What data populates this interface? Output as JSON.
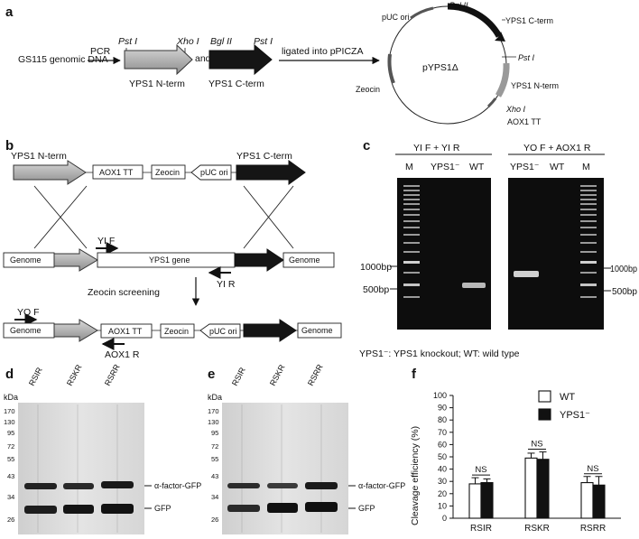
{
  "panel_a": {
    "label": "a",
    "source": "GS115 genomic DNA",
    "pcr": "PCR",
    "pst1": "Pst I",
    "xho1": "Xho I",
    "bgl2": "Bgl II",
    "and": "and",
    "n_term": "YPS1 N-term",
    "c_term": "YPS1 C-term",
    "ligation": "ligated into pPICZA",
    "plasmid": {
      "name": "pYPS1Δ",
      "labels": [
        "pUC ori",
        "Bgl II",
        "YPS1 C-term",
        "Pst I",
        "YPS1 N-term",
        "Xho I",
        "AOX1 TT",
        "Zeocin"
      ]
    }
  },
  "panel_b": {
    "label": "b",
    "n_term": "YPS1 N-term",
    "c_term": "YPS1 C-term",
    "aox1tt": "AOX1 TT",
    "zeocin": "Zeocin",
    "puc": "pUC ori",
    "genome": "Genome",
    "gene": "YPS1 gene",
    "yif": "YI F",
    "yir": "YI R",
    "screening": "Zeocin screening",
    "yof": "YO F",
    "aox1r": "AOX1 R"
  },
  "panel_c": {
    "label": "c",
    "gel1_title": "YI F + YI R",
    "gel2_title": "YO F + AOX1 R",
    "lanes1": [
      "M",
      "YPS1⁻",
      "WT"
    ],
    "lanes2": [
      "YPS1⁻",
      "WT",
      "M"
    ],
    "marker_1000": "1000bp",
    "marker_500": "500bp",
    "legend": "YPS1⁻: YPS1 knockout; WT: wild type"
  },
  "panel_d": {
    "label": "d",
    "kda": "kDa",
    "lanes": [
      "RSIR",
      "RSKR",
      "RSRR"
    ],
    "ladder": [
      "170",
      "130",
      "95",
      "72",
      "55",
      "43",
      "34",
      "26"
    ],
    "band_upper": "α-factor-GFP",
    "band_lower": "GFP"
  },
  "panel_e": {
    "label": "e",
    "kda": "kDa",
    "lanes": [
      "RSIR",
      "RSKR",
      "RSRR"
    ],
    "ladder": [
      "170",
      "130",
      "95",
      "72",
      "55",
      "43",
      "34",
      "26"
    ],
    "band_upper": "α-factor-GFP",
    "band_lower": "GFP"
  },
  "panel_f": {
    "label": "f",
    "sig": [
      "NS",
      "NS",
      "NS"
    ]
  },
  "chart_data": {
    "type": "bar",
    "categories": [
      "RSIR",
      "RSKR",
      "RSRR"
    ],
    "series": [
      {
        "name": "WT",
        "values": [
          28,
          49,
          29
        ],
        "errors": [
          5,
          4,
          5
        ],
        "color": "#ffffff"
      },
      {
        "name": "YPS1⁻",
        "values": [
          29,
          48,
          27
        ],
        "errors": [
          3,
          6,
          7
        ],
        "color": "#111111"
      }
    ],
    "ylabel": "Cleavage efficiency (%)",
    "ylim": [
      0,
      100
    ],
    "yticks": [
      "0",
      "10",
      "20",
      "30",
      "40",
      "50",
      "60",
      "70",
      "80",
      "90",
      "100"
    ],
    "legend_position": "top-right"
  }
}
